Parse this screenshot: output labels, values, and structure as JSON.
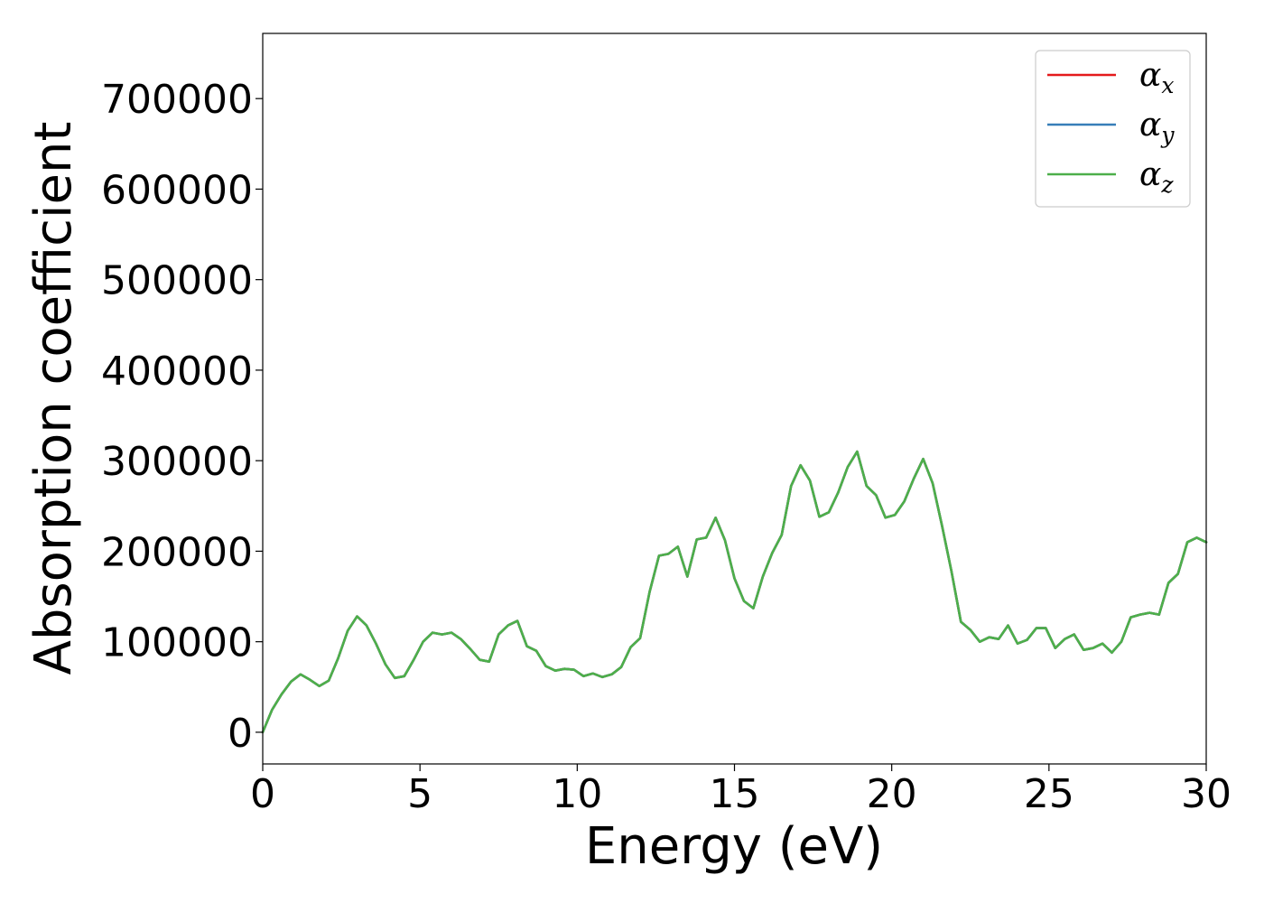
{
  "chart_data": {
    "type": "line",
    "title": "",
    "xlabel": "Energy (eV)",
    "ylabel": "Absorption coefficient",
    "xlim": [
      0,
      30
    ],
    "ylim": [
      -35000,
      772000
    ],
    "xticks": [
      0,
      5,
      10,
      15,
      20,
      25,
      30
    ],
    "xtick_labels": [
      "0",
      "5",
      "10",
      "15",
      "20",
      "25",
      "30"
    ],
    "yticks": [
      0,
      100000,
      200000,
      300000,
      400000,
      500000,
      600000,
      700000
    ],
    "ytick_labels": [
      "0",
      "100000",
      "200000",
      "300000",
      "400000",
      "500000",
      "600000",
      "700000"
    ],
    "grid": false,
    "legend_position": "top-right",
    "x": [
      0,
      0.3,
      0.6,
      0.9,
      1.2,
      1.5,
      1.8,
      2.1,
      2.4,
      2.7,
      3.0,
      3.3,
      3.6,
      3.9,
      4.2,
      4.5,
      4.8,
      5.1,
      5.4,
      5.7,
      6.0,
      6.3,
      6.6,
      6.9,
      7.2,
      7.5,
      7.8,
      8.1,
      8.4,
      8.7,
      9.0,
      9.3,
      9.6,
      9.9,
      10.2,
      10.5,
      10.8,
      11.1,
      11.4,
      11.7,
      12.0,
      12.3,
      12.6,
      12.9,
      13.2,
      13.5,
      13.8,
      14.1,
      14.4,
      14.7,
      15.0,
      15.3,
      15.6,
      15.9,
      16.2,
      16.5,
      16.8,
      17.1,
      17.4,
      17.7,
      18.0,
      18.3,
      18.6,
      18.9,
      19.2,
      19.5,
      19.8,
      20.1,
      20.4,
      20.7,
      21.0,
      21.3,
      21.6,
      21.9,
      22.2,
      22.5,
      22.8,
      23.1,
      23.4,
      23.7,
      24.0,
      24.3,
      24.6,
      24.9,
      25.2,
      25.5,
      25.8,
      26.1,
      26.4,
      26.7,
      27.0,
      27.3,
      27.6,
      27.9,
      28.2,
      28.5,
      28.8,
      29.1,
      29.4,
      29.7,
      30.0
    ],
    "series": [
      {
        "name": "α_x",
        "legend_base": "α",
        "legend_sub": "x",
        "color": "#e41a1c",
        "values": [
          0,
          25000,
          42000,
          56000,
          64000,
          58000,
          51000,
          57000,
          82000,
          112000,
          128000,
          118000,
          98000,
          75000,
          60000,
          62000,
          80000,
          100000,
          110000,
          108000,
          110000,
          103000,
          92000,
          80000,
          78000,
          108000,
          118000,
          123000,
          95000,
          90000,
          73000,
          68000,
          70000,
          69000,
          62000,
          65000,
          61000,
          64000,
          72000,
          94000,
          104000,
          155000,
          195000,
          197000,
          205000,
          172000,
          213000,
          215000,
          237000,
          212000,
          170000,
          145000,
          137000,
          172000,
          198000,
          218000,
          272000,
          295000,
          278000,
          238000,
          243000,
          265000,
          293000,
          310000,
          272000,
          262000,
          237000,
          240000,
          255000,
          280000,
          302000,
          275000,
          228000,
          178000,
          122000,
          113000,
          100000,
          105000,
          103000,
          118000,
          98000,
          102000,
          115000,
          115000,
          93000,
          103000,
          108000,
          91000,
          93000,
          98000,
          88000,
          100000,
          127000,
          130000,
          132000,
          130000,
          165000,
          175000,
          210000,
          215000,
          210000
        ]
      },
      {
        "name": "α_y",
        "legend_base": "α",
        "legend_sub": "y",
        "color": "#377eb8",
        "values": [
          0,
          25000,
          42000,
          56000,
          64000,
          58000,
          51000,
          57000,
          82000,
          112000,
          128000,
          118000,
          98000,
          75000,
          60000,
          62000,
          80000,
          100000,
          110000,
          108000,
          110000,
          103000,
          92000,
          80000,
          78000,
          108000,
          118000,
          123000,
          95000,
          90000,
          73000,
          68000,
          70000,
          69000,
          62000,
          65000,
          61000,
          64000,
          72000,
          94000,
          104000,
          155000,
          195000,
          197000,
          205000,
          172000,
          213000,
          215000,
          237000,
          212000,
          170000,
          145000,
          137000,
          172000,
          198000,
          218000,
          272000,
          295000,
          278000,
          238000,
          243000,
          265000,
          293000,
          310000,
          272000,
          262000,
          237000,
          240000,
          255000,
          280000,
          302000,
          275000,
          228000,
          178000,
          122000,
          113000,
          100000,
          105000,
          103000,
          118000,
          98000,
          102000,
          115000,
          115000,
          93000,
          103000,
          108000,
          91000,
          93000,
          98000,
          88000,
          100000,
          127000,
          130000,
          132000,
          130000,
          165000,
          175000,
          210000,
          215000,
          210000
        ]
      },
      {
        "name": "α_z",
        "legend_base": "α",
        "legend_sub": "z",
        "color": "#4daf4a",
        "values": [
          0,
          25000,
          42000,
          56000,
          64000,
          58000,
          51000,
          57000,
          82000,
          112000,
          128000,
          118000,
          98000,
          75000,
          60000,
          62000,
          80000,
          100000,
          110000,
          108000,
          110000,
          103000,
          92000,
          80000,
          78000,
          108000,
          118000,
          123000,
          95000,
          90000,
          73000,
          68000,
          70000,
          69000,
          62000,
          65000,
          61000,
          64000,
          72000,
          94000,
          104000,
          155000,
          195000,
          197000,
          205000,
          172000,
          213000,
          215000,
          237000,
          212000,
          170000,
          145000,
          137000,
          172000,
          198000,
          218000,
          272000,
          295000,
          278000,
          238000,
          243000,
          265000,
          293000,
          310000,
          272000,
          262000,
          237000,
          240000,
          255000,
          280000,
          302000,
          275000,
          228000,
          178000,
          122000,
          113000,
          100000,
          105000,
          103000,
          118000,
          98000,
          102000,
          115000,
          115000,
          93000,
          103000,
          108000,
          91000,
          93000,
          98000,
          88000,
          100000,
          127000,
          130000,
          132000,
          130000,
          165000,
          175000,
          210000,
          215000,
          210000
        ]
      }
    ]
  }
}
